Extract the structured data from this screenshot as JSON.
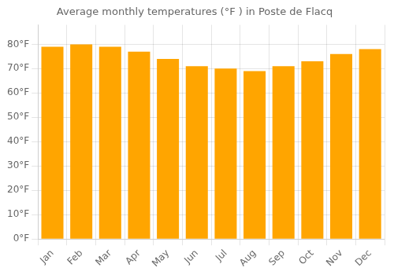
{
  "chart_data": {
    "type": "bar",
    "title": "Average monthly temperatures (°F ) in Poste de Flacq",
    "categories": [
      "Jan",
      "Feb",
      "Mar",
      "Apr",
      "May",
      "Jun",
      "Jul",
      "Aug",
      "Sep",
      "Oct",
      "Nov",
      "Dec"
    ],
    "values": [
      79,
      80,
      79,
      77,
      74,
      71,
      70,
      69,
      71,
      73,
      76,
      78
    ],
    "color": "#FFA500",
    "ylim": [
      0,
      88
    ],
    "yticks": [
      {
        "value": 0,
        "label": "0°F"
      },
      {
        "value": 10,
        "label": "10°F"
      },
      {
        "value": 20,
        "label": "20°F"
      },
      {
        "value": 30,
        "label": "30°F"
      },
      {
        "value": 40,
        "label": "40°F"
      },
      {
        "value": 50,
        "label": "50°F"
      },
      {
        "value": 60,
        "label": "60°F"
      },
      {
        "value": 70,
        "label": "70°F"
      },
      {
        "value": 80,
        "label": "80°F"
      }
    ],
    "grid": true
  }
}
